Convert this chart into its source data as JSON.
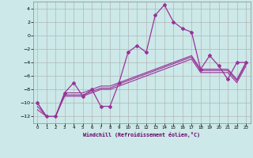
{
  "xlabel": "Windchill (Refroidissement éolien,°C)",
  "background_color": "#cce8e8",
  "grid_color": "#aaaaaa",
  "line_color": "#993399",
  "xlim": [
    -0.5,
    23.5
  ],
  "ylim": [
    -13,
    5
  ],
  "yticks": [
    -12,
    -10,
    -8,
    -6,
    -4,
    -2,
    0,
    2,
    4
  ],
  "xticks": [
    0,
    1,
    2,
    3,
    4,
    5,
    6,
    7,
    8,
    9,
    10,
    11,
    12,
    13,
    14,
    15,
    16,
    17,
    18,
    19,
    20,
    21,
    22,
    23
  ],
  "hours": [
    0,
    1,
    2,
    3,
    4,
    5,
    6,
    7,
    8,
    9,
    10,
    11,
    12,
    13,
    14,
    15,
    16,
    17,
    18,
    19,
    20,
    21,
    22,
    23
  ],
  "main_line": [
    -10,
    -12,
    -12,
    -8.5,
    -7,
    -9,
    -8,
    -10.5,
    -10.5,
    -7,
    -2.5,
    -1.5,
    -2.5,
    3,
    4.5,
    2,
    1,
    0.5,
    -5,
    -3,
    -4.5,
    -6.5,
    -4,
    -4
  ],
  "trend1": [
    -10,
    -12,
    -12,
    -8.5,
    -8.5,
    -8.5,
    -8,
    -7.5,
    -7.5,
    -7,
    -6.5,
    -6,
    -5.5,
    -5,
    -4.5,
    -4,
    -3.5,
    -3,
    -5,
    -5,
    -5,
    -5,
    -6.5,
    -4
  ],
  "trend2": [
    -10.5,
    -12,
    -12,
    -8.8,
    -8.8,
    -8.8,
    -8.3,
    -7.8,
    -7.8,
    -7.2,
    -6.7,
    -6.2,
    -5.7,
    -5.2,
    -4.7,
    -4.2,
    -3.7,
    -3.2,
    -5.2,
    -5.2,
    -5.2,
    -5.2,
    -6.7,
    -4.2
  ],
  "trend3": [
    -11,
    -12,
    -12,
    -9,
    -9,
    -9,
    -8.5,
    -8,
    -8,
    -7.5,
    -7,
    -6.5,
    -6,
    -5.5,
    -5,
    -4.5,
    -4,
    -3.5,
    -5.5,
    -5.5,
    -5.5,
    -5.5,
    -7,
    -4.5
  ]
}
